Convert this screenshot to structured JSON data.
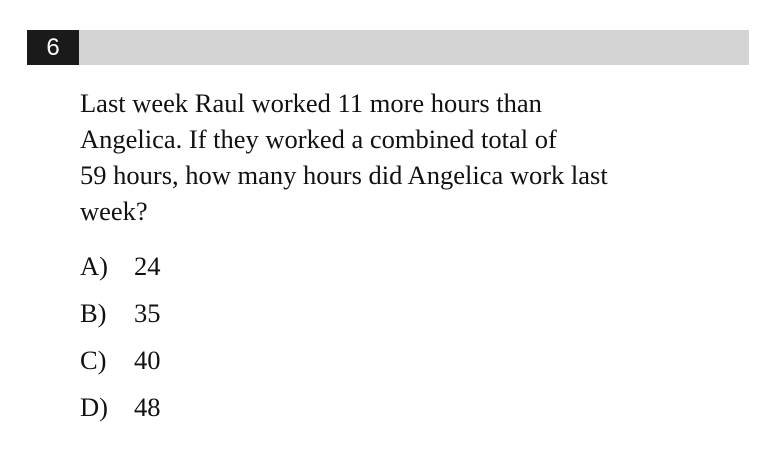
{
  "question": {
    "number": "6",
    "lines": [
      "Last week Raul worked 11 more hours than",
      "Angelica.  If they worked a combined total of",
      "59 hours, how many hours did Angelica work last",
      "week?"
    ]
  },
  "choices": [
    {
      "letter": "A)",
      "value": "24"
    },
    {
      "letter": "B)",
      "value": "35"
    },
    {
      "letter": "C)",
      "value": "40"
    },
    {
      "letter": "D)",
      "value": "48"
    }
  ]
}
